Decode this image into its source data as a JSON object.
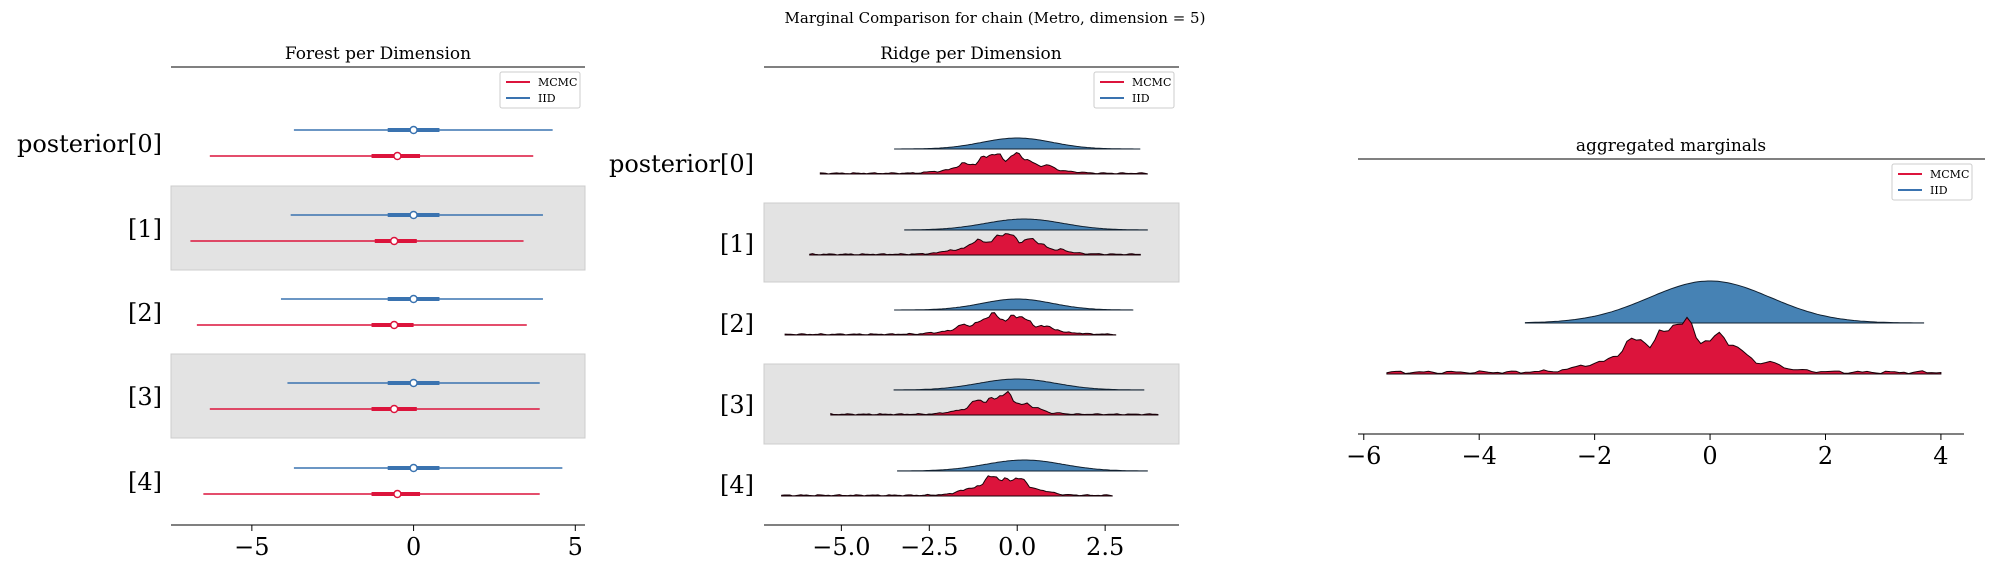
{
  "suptitle": "Marginal Comparison for chain (Metro, dimension = 5)",
  "colors": {
    "mcmc": "#dc143c",
    "iid": "#3a73b0",
    "iid_fill": "#4682b4",
    "band": "#e3e3e3"
  },
  "legend": {
    "entries": [
      "MCMC",
      "IID"
    ]
  },
  "row_labels": [
    "posterior[0]",
    "[1]",
    "[2]",
    "[3]",
    "[4]"
  ],
  "chart_data": [
    {
      "type": "forest",
      "title": "Forest per Dimension",
      "xlim": [
        -7.5,
        5.3
      ],
      "xticks": [
        -5,
        0,
        5
      ],
      "xtick_labels": [
        "−5",
        "0",
        "5"
      ],
      "series": [
        {
          "name": "MCMC",
          "rows": [
            {
              "hdi": [
                -6.3,
                3.7
              ],
              "iqr": [
                -1.3,
                0.2
              ],
              "center": -0.5
            },
            {
              "hdi": [
                -6.9,
                3.4
              ],
              "iqr": [
                -1.2,
                0.1
              ],
              "center": -0.6
            },
            {
              "hdi": [
                -6.7,
                3.5
              ],
              "iqr": [
                -1.3,
                0.0
              ],
              "center": -0.6
            },
            {
              "hdi": [
                -6.3,
                3.9
              ],
              "iqr": [
                -1.3,
                0.1
              ],
              "center": -0.6
            },
            {
              "hdi": [
                -6.5,
                3.9
              ],
              "iqr": [
                -1.3,
                0.2
              ],
              "center": -0.5
            }
          ]
        },
        {
          "name": "IID",
          "rows": [
            {
              "hdi": [
                -3.7,
                4.3
              ],
              "iqr": [
                -0.8,
                0.8
              ],
              "center": 0.0
            },
            {
              "hdi": [
                -3.8,
                4.0
              ],
              "iqr": [
                -0.8,
                0.8
              ],
              "center": 0.0
            },
            {
              "hdi": [
                -4.1,
                4.0
              ],
              "iqr": [
                -0.8,
                0.8
              ],
              "center": 0.0
            },
            {
              "hdi": [
                -3.9,
                3.9
              ],
              "iqr": [
                -0.8,
                0.8
              ],
              "center": 0.0
            },
            {
              "hdi": [
                -3.7,
                4.6
              ],
              "iqr": [
                -0.8,
                0.8
              ],
              "center": 0.0
            }
          ]
        }
      ]
    },
    {
      "type": "ridgeline",
      "title": "Ridge per Dimension",
      "xlim": [
        -7.2,
        4.6
      ],
      "xticks": [
        -5.0,
        -2.5,
        0.0,
        2.5
      ],
      "xtick_labels": [
        "−5.0",
        "−2.5",
        "0.0",
        "2.5"
      ],
      "series": [
        {
          "name": "IID",
          "rows": [
            {
              "range": [
                -3.5,
                3.5
              ],
              "sd": 1.0,
              "mean": 0.0
            },
            {
              "range": [
                -3.2,
                3.7
              ],
              "sd": 1.1,
              "mean": 0.2
            },
            {
              "range": [
                -3.5,
                3.3
              ],
              "sd": 1.0,
              "mean": 0.0
            },
            {
              "range": [
                -3.5,
                3.6
              ],
              "sd": 1.1,
              "mean": 0.0
            },
            {
              "range": [
                -3.4,
                3.7
              ],
              "sd": 1.1,
              "mean": 0.2
            }
          ]
        },
        {
          "name": "MCMC",
          "rows": [
            {
              "range": [
                -5.6,
                3.7
              ],
              "sd": 0.9,
              "mean": -0.4
            },
            {
              "range": [
                -5.9,
                3.5
              ],
              "sd": 0.9,
              "mean": -0.3
            },
            {
              "range": [
                -6.6,
                2.8
              ],
              "sd": 0.9,
              "mean": -0.4
            },
            {
              "range": [
                -5.3,
                4.0
              ],
              "sd": 0.7,
              "mean": -0.5
            },
            {
              "range": [
                -6.7,
                2.7
              ],
              "sd": 0.7,
              "mean": -0.4
            }
          ]
        }
      ]
    },
    {
      "type": "ridgeline",
      "title": "aggregated marginals",
      "xlim": [
        -6.1,
        4.4
      ],
      "xticks": [
        -6,
        -4,
        -2,
        0,
        2,
        4
      ],
      "xtick_labels": [
        "−6",
        "−4",
        "−2",
        "0",
        "2",
        "4"
      ],
      "series": [
        {
          "name": "IID",
          "range": [
            -3.2,
            3.7
          ],
          "sd": 1.05,
          "mean": 0.0
        },
        {
          "name": "MCMC",
          "range": [
            -5.6,
            4.0
          ],
          "sd": 0.85,
          "mean": -0.5
        }
      ]
    }
  ]
}
